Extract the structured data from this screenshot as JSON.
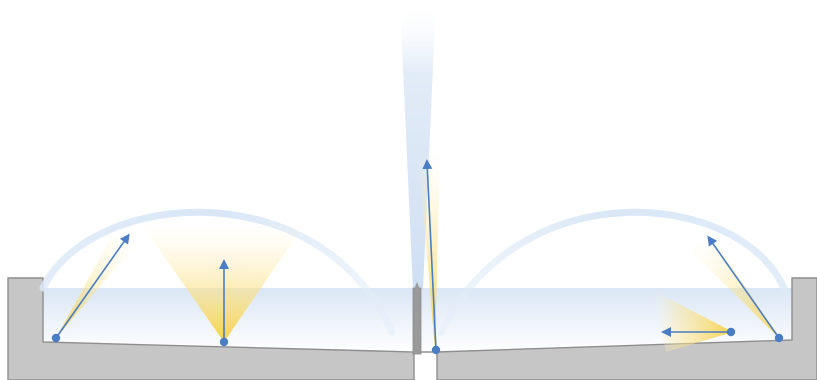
{
  "diagram": {
    "type": "pool-fountain-lighting-illustration",
    "colors": {
      "background": "#ffffff",
      "pool_body": "#c6c6c6",
      "pool_outline": "#8e8e8e",
      "water_top": "#dfe9f6",
      "water_bottom": "#ffffff",
      "jet": "#dde9f7",
      "nozzle": "#9a9a9a",
      "light_cone": "#fbe39a",
      "marker": "#4a7dc3"
    },
    "elements": [
      "left-wall",
      "right-wall",
      "pool-floor",
      "water-surface",
      "center-fountain-jet",
      "left-arc-jet",
      "right-arc-jet",
      "light-fixtures"
    ]
  }
}
